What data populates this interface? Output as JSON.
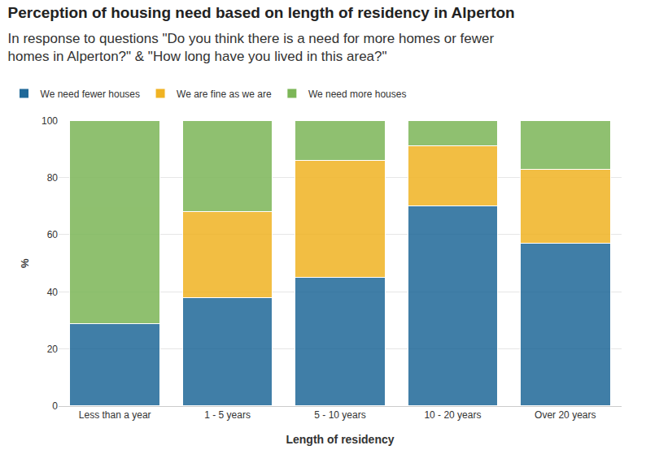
{
  "chart_data": {
    "type": "bar",
    "title": "Perception of housing need based on length of residency in Alperton",
    "subtitle": "In response to questions \"Do you think there is a need for more homes or fewer homes in Alperton?\" & \"How long have you lived in this area?\"",
    "x_label": "Length of residency",
    "y_label": "%",
    "categories": [
      "Less than a year",
      "1 - 5 years",
      "5 - 10 years",
      "10 - 20 years",
      "Over 20 years"
    ],
    "series": [
      {
        "name": "We need fewer houses",
        "color": "#1f6898",
        "values": [
          29,
          38,
          45,
          70,
          57
        ]
      },
      {
        "name": "We are fine as we are",
        "color": "#f0b323",
        "values": [
          0,
          30,
          41,
          21,
          26
        ]
      },
      {
        "name": "We need more houses",
        "color": "#7cb657",
        "values": [
          71,
          32,
          14,
          9,
          17
        ]
      }
    ],
    "stacked": true,
    "ylim": [
      0,
      100
    ],
    "yticks": [
      0,
      20,
      40,
      60,
      80,
      100
    ],
    "grid": true,
    "legend": "top-left"
  }
}
